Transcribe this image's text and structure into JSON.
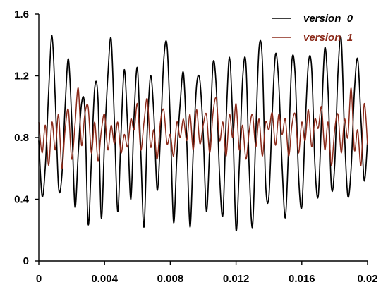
{
  "chart_data": {
    "type": "line",
    "title": "",
    "xlabel": "",
    "ylabel": "",
    "xlim": [
      0,
      0.02
    ],
    "ylim": [
      0,
      1.6
    ],
    "x_ticks": [
      "0",
      "0.004",
      "0.008",
      "0.012",
      "0.016",
      "0.02"
    ],
    "y_ticks": [
      "0",
      "0.4",
      "0.8",
      "1.2",
      "1.6"
    ],
    "grid": false,
    "legend_position": "top-right",
    "series": [
      {
        "name": "version_0",
        "color": "#000000",
        "x": [
          0,
          0.0002,
          0.0004,
          0.0006,
          0.0008,
          0.001,
          0.0012,
          0.0014,
          0.0016,
          0.0018,
          0.002,
          0.0022,
          0.0024,
          0.0026,
          0.0028,
          0.003,
          0.0032,
          0.0034,
          0.0036,
          0.0038,
          0.004,
          0.0042,
          0.0044,
          0.0046,
          0.0048,
          0.005,
          0.0052,
          0.0054,
          0.0056,
          0.0058,
          0.006,
          0.0062,
          0.0064,
          0.0066,
          0.0068,
          0.007,
          0.0072,
          0.0074,
          0.0076,
          0.0078,
          0.008,
          0.0082,
          0.0084,
          0.0086,
          0.0088,
          0.009,
          0.0092,
          0.0094,
          0.0096,
          0.0098,
          0.01,
          0.0102,
          0.0104,
          0.0106,
          0.0108,
          0.011,
          0.0112,
          0.0114,
          0.0116,
          0.0118,
          0.012,
          0.0122,
          0.0124,
          0.0126,
          0.0128,
          0.013,
          0.0132,
          0.0134,
          0.0136,
          0.0138,
          0.014,
          0.0142,
          0.0144,
          0.0146,
          0.0148,
          0.015,
          0.0152,
          0.0154,
          0.0156,
          0.0158,
          0.016,
          0.0162,
          0.0164,
          0.0166,
          0.0168,
          0.017,
          0.0172,
          0.0174,
          0.0176,
          0.0178,
          0.018,
          0.0182,
          0.0184,
          0.0186,
          0.0188,
          0.019,
          0.0192,
          0.0194,
          0.0196,
          0.0198,
          0.02
        ],
        "values": [
          0.78,
          0.42,
          0.62,
          1.1,
          1.46,
          1.05,
          0.48,
          0.55,
          1.0,
          1.31,
          0.92,
          0.35,
          0.7,
          1.02,
          0.98,
          0.24,
          0.65,
          1.12,
          1.05,
          0.28,
          0.78,
          1.2,
          1.44,
          0.9,
          0.32,
          0.82,
          1.24,
          0.88,
          0.4,
          0.95,
          1.25,
          0.72,
          0.22,
          0.85,
          1.2,
          0.95,
          0.46,
          0.8,
          1.3,
          1.4,
          0.9,
          0.25,
          0.68,
          1.02,
          1.22,
          0.78,
          0.22,
          0.72,
          1.14,
          1.17,
          0.83,
          0.32,
          0.75,
          1.28,
          1.12,
          0.55,
          0.3,
          0.92,
          1.32,
          0.9,
          0.2,
          0.62,
          1.18,
          1.28,
          0.6,
          0.22,
          0.82,
          1.38,
          1.3,
          0.5,
          0.42,
          0.95,
          1.34,
          1.15,
          0.62,
          0.28,
          0.75,
          1.3,
          1.2,
          0.56,
          0.35,
          0.85,
          1.28,
          1.25,
          0.62,
          0.42,
          0.92,
          1.38,
          1.1,
          0.48,
          0.62,
          1.22,
          1.44,
          0.82,
          0.42,
          0.6,
          1.1,
          1.31,
          0.92,
          0.52,
          0.78
        ]
      },
      {
        "name": "version_1",
        "color": "#8b2a1a",
        "x": [
          0,
          0.0002,
          0.0004,
          0.0006,
          0.0008,
          0.001,
          0.0012,
          0.0014,
          0.0016,
          0.0018,
          0.002,
          0.0022,
          0.0024,
          0.0026,
          0.0028,
          0.003,
          0.0032,
          0.0034,
          0.0036,
          0.0038,
          0.004,
          0.0042,
          0.0044,
          0.0046,
          0.0048,
          0.005,
          0.0052,
          0.0054,
          0.0056,
          0.0058,
          0.006,
          0.0062,
          0.0064,
          0.0066,
          0.0068,
          0.007,
          0.0072,
          0.0074,
          0.0076,
          0.0078,
          0.008,
          0.0082,
          0.0084,
          0.0086,
          0.0088,
          0.009,
          0.0092,
          0.0094,
          0.0096,
          0.0098,
          0.01,
          0.0102,
          0.0104,
          0.0106,
          0.0108,
          0.011,
          0.0112,
          0.0114,
          0.0116,
          0.0118,
          0.012,
          0.0122,
          0.0124,
          0.0126,
          0.0128,
          0.013,
          0.0132,
          0.0134,
          0.0136,
          0.0138,
          0.014,
          0.0142,
          0.0144,
          0.0146,
          0.0148,
          0.015,
          0.0152,
          0.0154,
          0.0156,
          0.0158,
          0.016,
          0.0162,
          0.0164,
          0.0166,
          0.0168,
          0.017,
          0.0172,
          0.0174,
          0.0176,
          0.0178,
          0.018,
          0.0182,
          0.0184,
          0.0186,
          0.0188,
          0.019,
          0.0192,
          0.0194,
          0.0196,
          0.0198,
          0.02
        ],
        "values": [
          0.9,
          0.7,
          0.88,
          0.62,
          0.9,
          0.72,
          0.95,
          0.6,
          0.85,
          0.98,
          0.66,
          0.88,
          1.12,
          0.75,
          0.95,
          1.0,
          0.7,
          0.9,
          0.65,
          0.84,
          0.95,
          0.72,
          0.88,
          0.76,
          0.9,
          0.7,
          0.82,
          0.74,
          0.92,
          0.85,
          1.02,
          0.72,
          0.9,
          1.05,
          0.74,
          0.85,
          0.66,
          0.9,
          0.98,
          0.76,
          0.82,
          0.68,
          0.9,
          0.8,
          0.92,
          0.78,
          0.95,
          0.72,
          0.98,
          0.76,
          0.88,
          0.95,
          0.7,
          0.96,
          1.05,
          0.78,
          0.9,
          0.68,
          0.95,
          0.8,
          1.02,
          0.72,
          0.88,
          0.66,
          0.84,
          0.95,
          0.74,
          0.92,
          0.68,
          0.9,
          0.85,
          0.96,
          0.75,
          0.95,
          0.82,
          0.92,
          0.68,
          0.88,
          0.95,
          0.7,
          0.9,
          0.78,
          0.98,
          0.74,
          0.92,
          0.86,
          1.0,
          0.72,
          0.9,
          0.62,
          0.85,
          0.95,
          0.7,
          0.92,
          0.8,
          1.12,
          0.72,
          0.85,
          0.62,
          1.02,
          0.75
        ]
      }
    ]
  }
}
